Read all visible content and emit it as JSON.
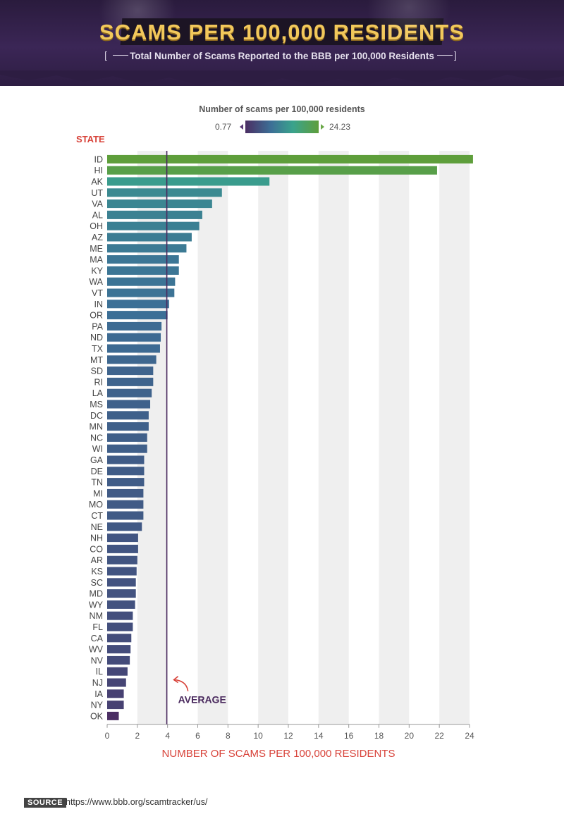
{
  "header": {
    "title": "SCAMS PER 100,000 RESIDENTS",
    "subtitle": "Total Number of Scams Reported to the BBB per 100,000 Residents",
    "bg_color": "#2e1f44",
    "title_color": "#f2c85b"
  },
  "legend": {
    "title": "Number of scams per 100,000 residents",
    "min_label": "0.77",
    "max_label": "24.23",
    "gradient_colors": [
      "#4b2e63",
      "#3c6f96",
      "#3aa38c",
      "#5e9e3b"
    ]
  },
  "chart_data": {
    "type": "bar",
    "orientation": "horizontal",
    "title": "",
    "ylabel": "STATE",
    "xlabel": "NUMBER OF SCAMS PER 100,000 RESIDENTS",
    "xlim": [
      0,
      24
    ],
    "xticks": [
      0,
      2,
      4,
      6,
      8,
      10,
      12,
      14,
      16,
      18,
      20,
      22,
      24
    ],
    "grid": "alternating vertical bands",
    "categories": [
      "ID",
      "HI",
      "AK",
      "UT",
      "VA",
      "AL",
      "OH",
      "AZ",
      "ME",
      "MA",
      "KY",
      "WA",
      "VT",
      "IN",
      "OR",
      "PA",
      "ND",
      "TX",
      "MT",
      "SD",
      "RI",
      "LA",
      "MS",
      "DC",
      "MN",
      "NC",
      "WI",
      "GA",
      "DE",
      "TN",
      "MI",
      "MO",
      "CT",
      "NE",
      "NH",
      "CO",
      "AR",
      "KS",
      "SC",
      "MD",
      "WY",
      "NM",
      "FL",
      "CA",
      "WV",
      "NV",
      "IL",
      "NJ",
      "IA",
      "NY",
      "OK"
    ],
    "values": [
      24.23,
      21.85,
      10.75,
      7.6,
      6.95,
      6.3,
      6.1,
      5.6,
      5.25,
      4.75,
      4.75,
      4.5,
      4.45,
      4.1,
      4.0,
      3.6,
      3.55,
      3.5,
      3.25,
      3.05,
      3.05,
      2.95,
      2.85,
      2.75,
      2.75,
      2.65,
      2.65,
      2.45,
      2.45,
      2.45,
      2.4,
      2.4,
      2.4,
      2.3,
      2.05,
      2.05,
      2.0,
      1.95,
      1.9,
      1.9,
      1.85,
      1.7,
      1.7,
      1.6,
      1.55,
      1.5,
      1.35,
      1.25,
      1.1,
      1.1,
      0.77
    ],
    "average": 3.95,
    "average_label": "AVERAGE",
    "color_scale": {
      "min": 0.77,
      "max": 24.23
    }
  },
  "colors": {
    "axis_title": "#d8433a",
    "state_label": "#d8433a",
    "average_line": "#4a2a5e",
    "band": "#efefef"
  },
  "source": {
    "badge": "SOURCE",
    "url": "https://www.bbb.org/scamtracker/us/"
  }
}
